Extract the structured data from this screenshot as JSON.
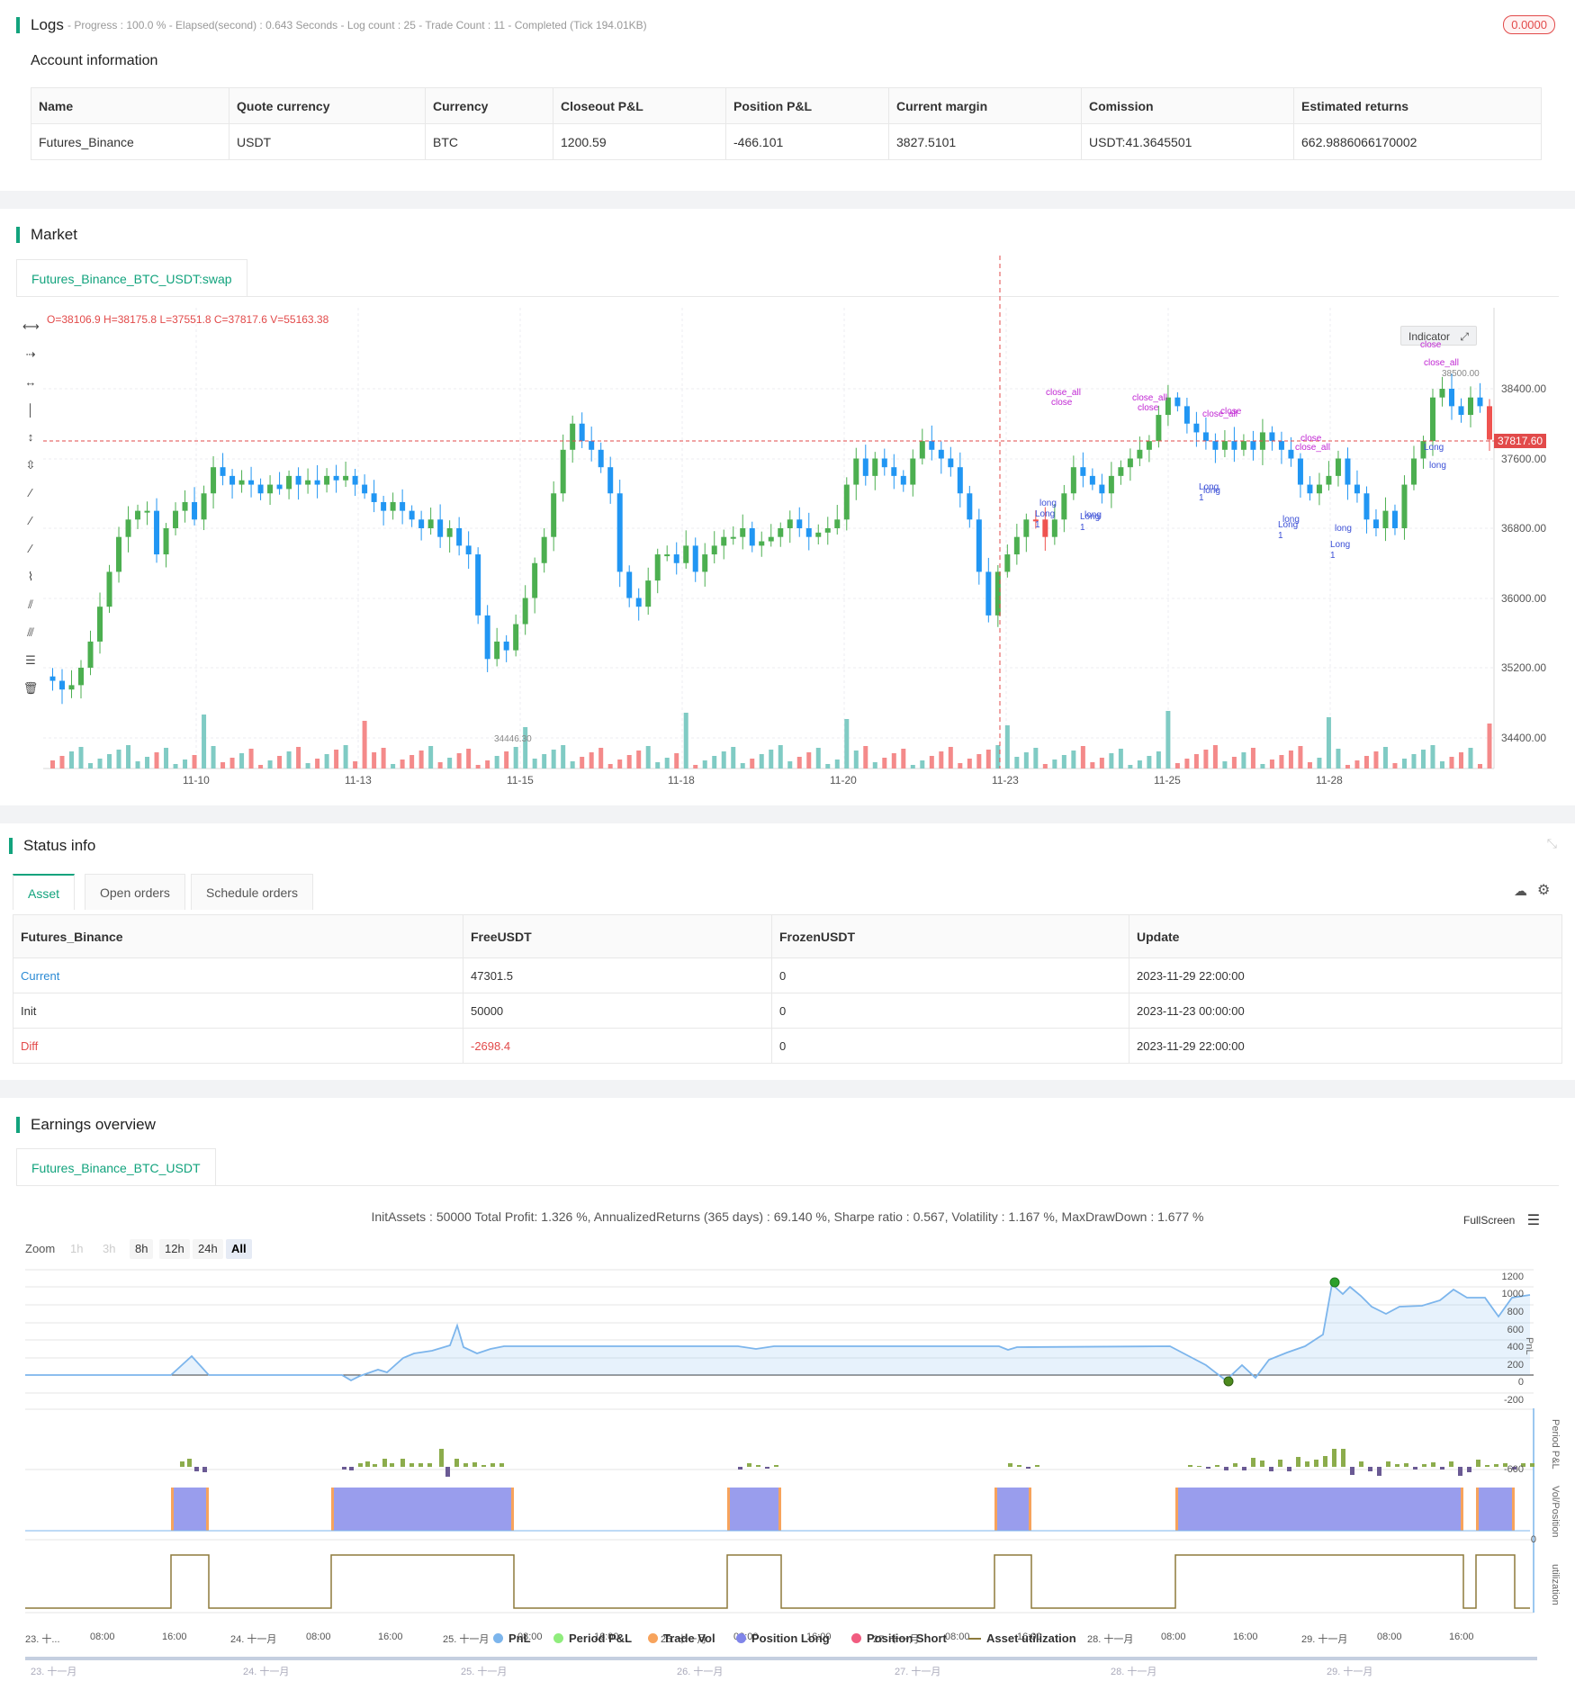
{
  "logs": {
    "title": "Logs",
    "status_line": "- Progress : 100.0 % - Elapsed(second) : 0.643  Seconds - Log count : 25 - Trade Count : 11 - Completed (Tick 194.01KB)",
    "badge": "0.0000"
  },
  "account": {
    "title": "Account information",
    "headers": [
      "Name",
      "Quote currency",
      "Currency",
      "Closeout P&L",
      "Position P&L",
      "Current margin",
      "Comission",
      "Estimated returns"
    ],
    "row": [
      "Futures_Binance",
      "USDT",
      "BTC",
      "1200.59",
      "-466.101",
      "3827.5101",
      "USDT:41.3645501",
      "662.9886066170002"
    ]
  },
  "market": {
    "title": "Market",
    "tab": "Futures_Binance_BTC_USDT:swap",
    "ohlc": "O=38106.9 H=38175.8 L=37551.8 C=37817.6 V=55163.38",
    "indicator_btn": "Indicator",
    "price_ticks": [
      "38400.00",
      "37600.00",
      "36800.00",
      "36000.00",
      "35200.00",
      "34400.00"
    ],
    "current_price": "37817.60",
    "high_label": "38500.00",
    "low_label": "34446.30",
    "date_ticks": [
      "11-10",
      "11-13",
      "11-15",
      "11-18",
      "11-20",
      "11-23",
      "11-25",
      "11-28"
    ],
    "annotations": {
      "close_all": "close_all",
      "close": "close",
      "long_cap": "Long",
      "long_low": "long",
      "one": "1"
    }
  },
  "status": {
    "title": "Status info",
    "tabs": [
      "Asset",
      "Open orders",
      "Schedule orders"
    ],
    "headers": [
      "Futures_Binance",
      "FreeUSDT",
      "FrozenUSDT",
      "Update"
    ],
    "rows": [
      {
        "label": "Current",
        "free": "47301.5",
        "frozen": "0",
        "update": "2023-11-29 22:00:00"
      },
      {
        "label": "Init",
        "free": "50000",
        "frozen": "0",
        "update": "2023-11-23 00:00:00"
      },
      {
        "label": "Diff",
        "free": "-2698.4",
        "frozen": "0",
        "update": "2023-11-29 22:00:00"
      }
    ]
  },
  "earnings": {
    "title": "Earnings overview",
    "tab": "Futures_Binance_BTC_USDT",
    "summary": "InitAssets : 50000 Total Profit: 1.326 %, AnnualizedReturns (365 days) : 69.140 %, Sharpe ratio : 0.567, Volatility : 1.167 %, MaxDrawDown : 1.677 %",
    "fullscreen": "FullScreen",
    "zoom_label": "Zoom",
    "zoom_buttons": [
      "1h",
      "3h",
      "8h",
      "12h",
      "24h",
      "All"
    ],
    "pnl_ticks": [
      "1200",
      "1000",
      "800",
      "600",
      "400",
      "200",
      "0",
      "-200"
    ],
    "period_tick": "-600",
    "vol_tick": "0",
    "axis_titles": [
      "PnL",
      "Period P&L",
      "Vol/Position",
      "utilization"
    ],
    "time_ticks": [
      "23. 十...",
      "08:00",
      "16:00",
      "24. 十一月",
      "08:00",
      "16:00",
      "25. 十一月",
      "08:00",
      "16:00",
      "26. 十一月",
      "08:00",
      "16:00",
      "27. 十一月",
      "08:00",
      "16:00",
      "28. 十一月",
      "08:00",
      "16:00",
      "29. 十一月",
      "08:00",
      "16:00"
    ],
    "navigator_ticks": [
      "23. 十一月",
      "24. 十一月",
      "25. 十一月",
      "26. 十一月",
      "27. 十一月",
      "28. 十一月",
      "29. 十一月"
    ],
    "legend": [
      {
        "label": "PnL",
        "color": "#7cb5ec"
      },
      {
        "label": "Period P&L",
        "color": "#90ed7d"
      },
      {
        "label": "Trade Vol",
        "color": "#f7a35c"
      },
      {
        "label": "Position Long",
        "color": "#8085e9"
      },
      {
        "label": "Position Short",
        "color": "#f15c80"
      },
      {
        "label": "Asset utilization",
        "color": "#8d7a3c"
      }
    ]
  }
}
